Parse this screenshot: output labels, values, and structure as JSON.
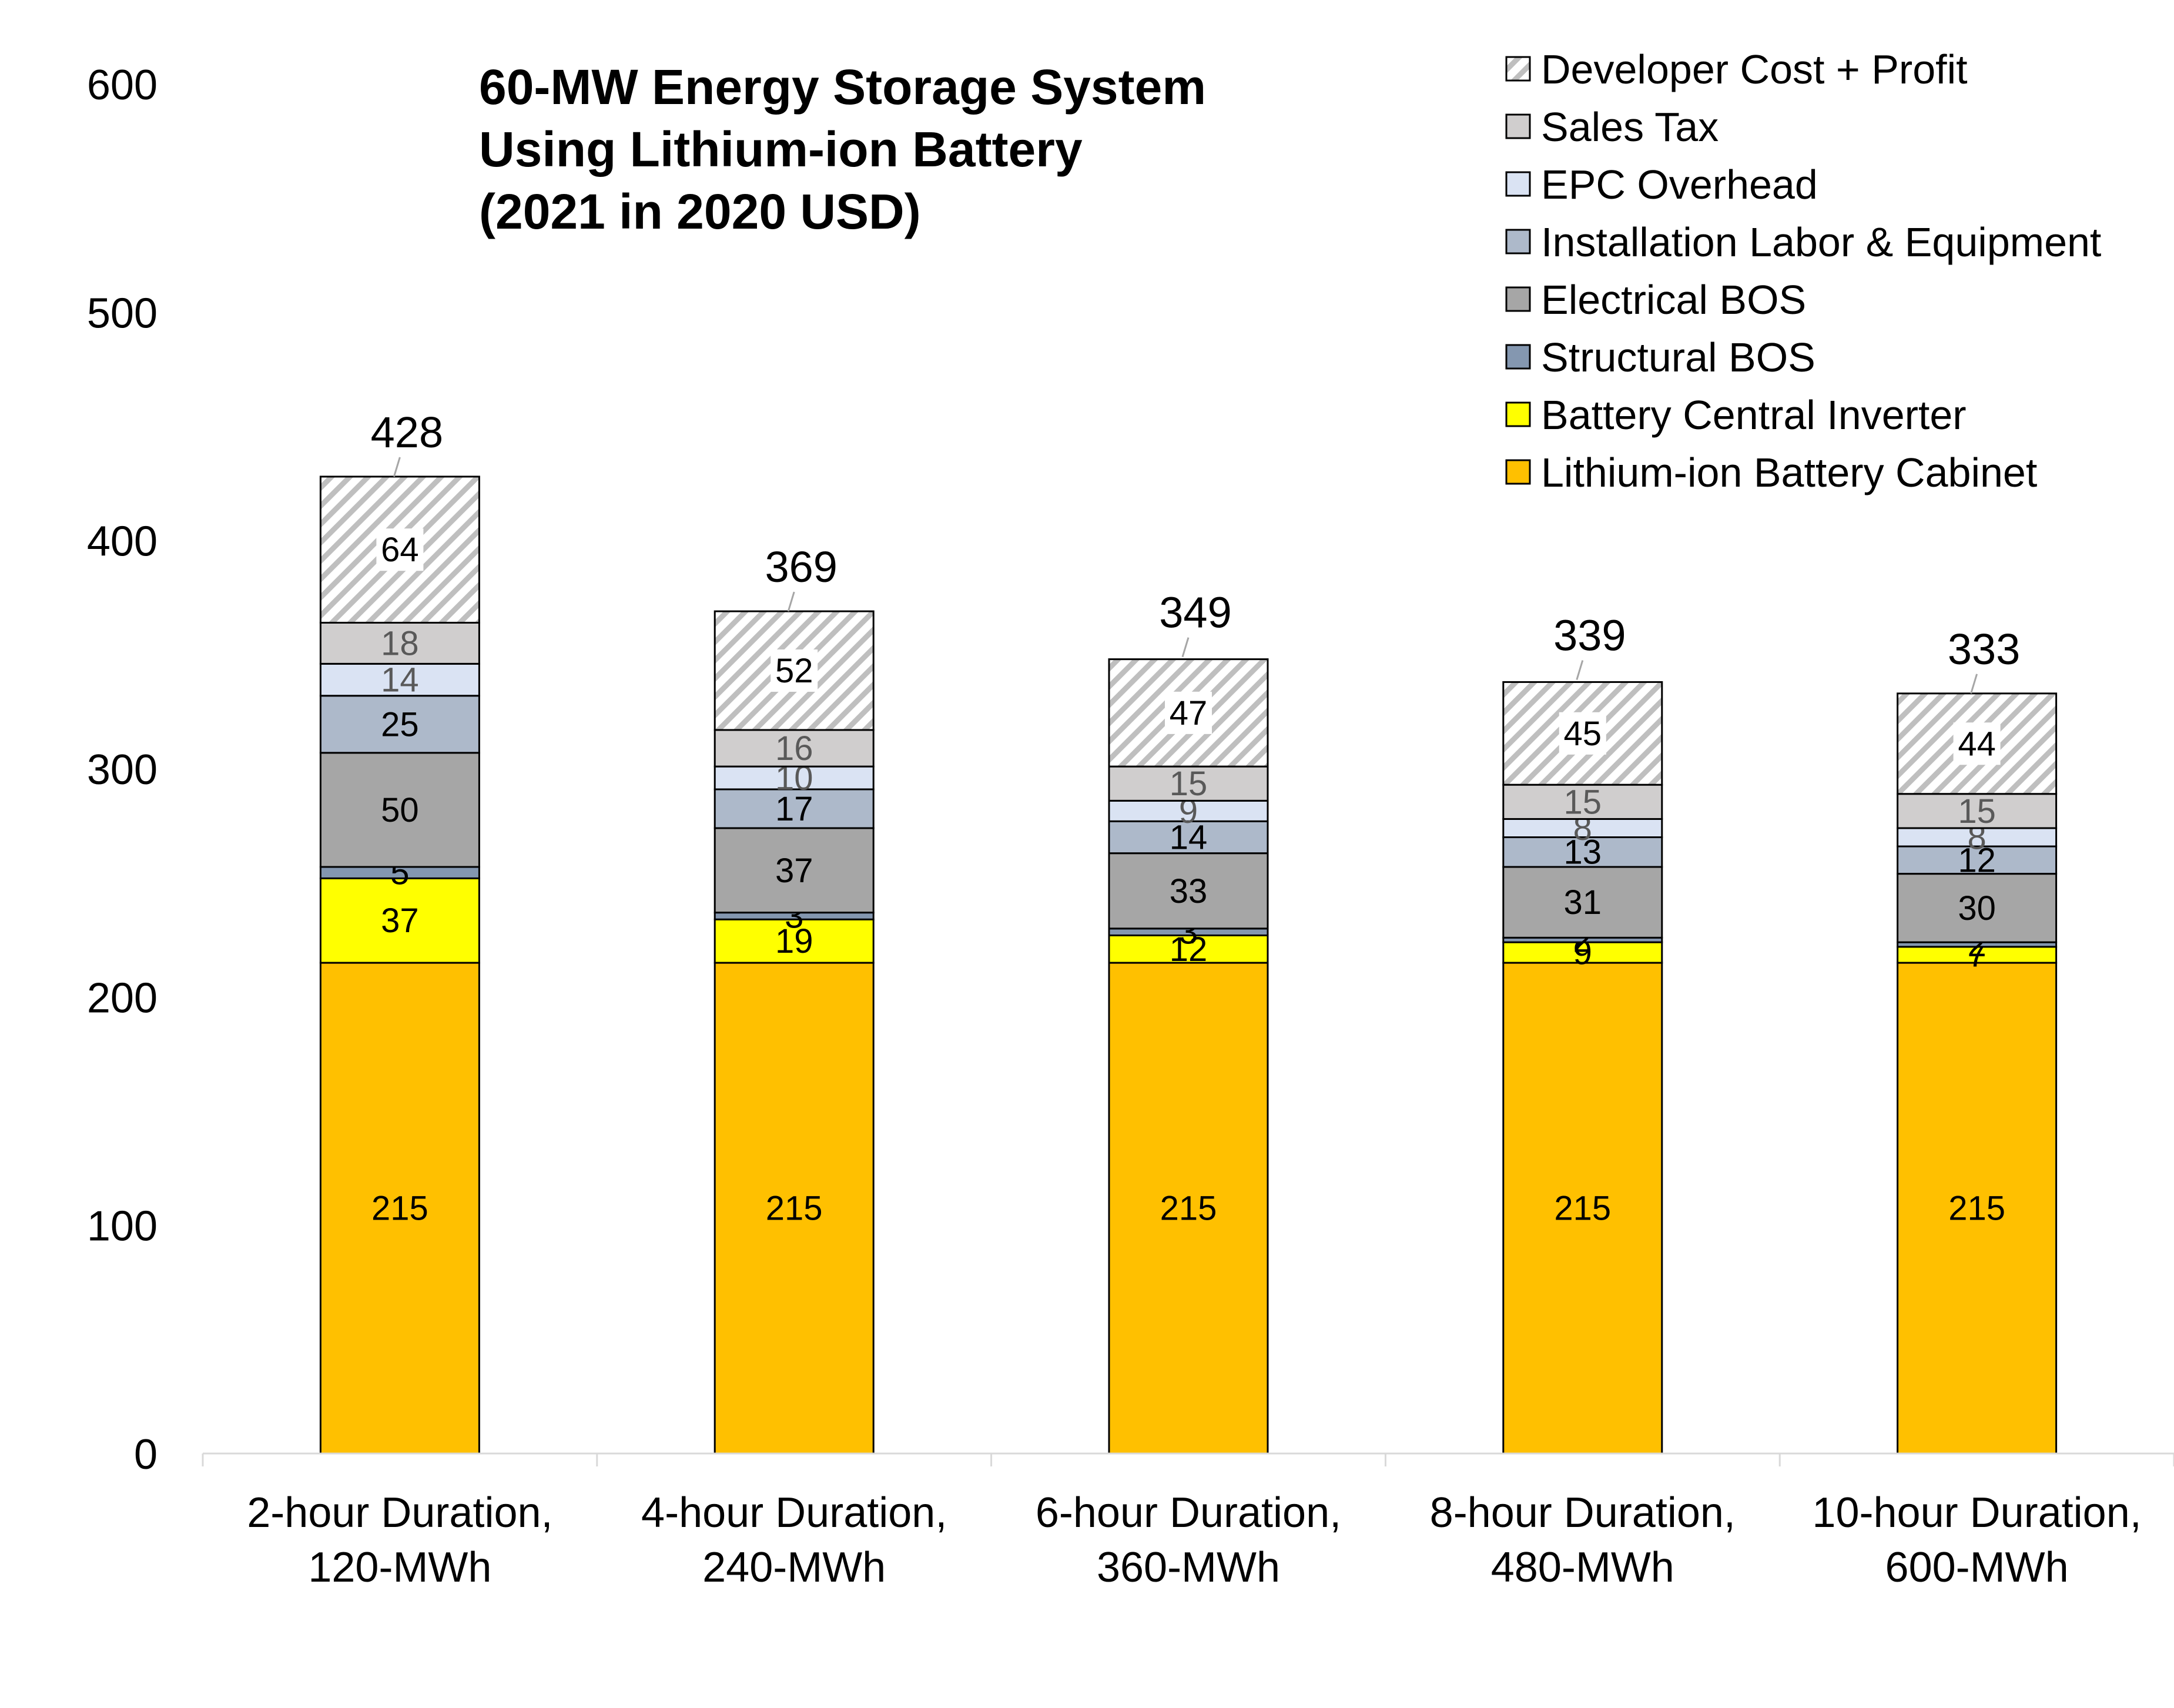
{
  "chart_data": {
    "type": "bar",
    "stacked": true,
    "title_lines": [
      "60-MW Energy Storage System",
      "Using Lithium-ion Battery",
      "(2021 in 2020 USD)"
    ],
    "xlabel": "",
    "ylabel": "",
    "ylim": [
      0,
      600
    ],
    "yticks": [
      "0",
      "100",
      "200",
      "300",
      "400",
      "500",
      "600"
    ],
    "grid": false,
    "legend_position": "top-right",
    "categories": [
      [
        "2-hour Duration,",
        "120-MWh"
      ],
      [
        "4-hour Duration,",
        "240-MWh"
      ],
      [
        "6-hour Duration,",
        "360-MWh"
      ],
      [
        "8-hour Duration,",
        "480-MWh"
      ],
      [
        "10-hour Duration,",
        "600-MWh"
      ]
    ],
    "totals": [
      428,
      369,
      349,
      339,
      333
    ],
    "series": [
      {
        "name": "Lithium-ion Battery Cabinet",
        "values": [
          215,
          215,
          215,
          215,
          215
        ],
        "color": "#FFC000"
      },
      {
        "name": "Battery Central Inverter",
        "values": [
          37,
          19,
          12,
          9,
          7
        ],
        "color": "#FFFF00"
      },
      {
        "name": "Structural BOS",
        "values": [
          5,
          3,
          3,
          2,
          2
        ],
        "color": "#8497B0"
      },
      {
        "name": "Electrical BOS",
        "values": [
          50,
          37,
          33,
          31,
          30
        ],
        "color": "#A6A6A6"
      },
      {
        "name": "Installation Labor & Equipment",
        "values": [
          25,
          17,
          14,
          13,
          12
        ],
        "color": "#ADB9CA"
      },
      {
        "name": "EPC Overhead",
        "values": [
          14,
          10,
          9,
          8,
          8
        ],
        "color": "#DAE3F3"
      },
      {
        "name": "Sales Tax",
        "values": [
          18,
          16,
          15,
          15,
          15
        ],
        "color": "#D0CECE"
      },
      {
        "name": "Developer Cost + Profit",
        "values": [
          64,
          52,
          47,
          45,
          44
        ],
        "color": "#FFFFFF",
        "pattern": "hatch"
      }
    ]
  }
}
